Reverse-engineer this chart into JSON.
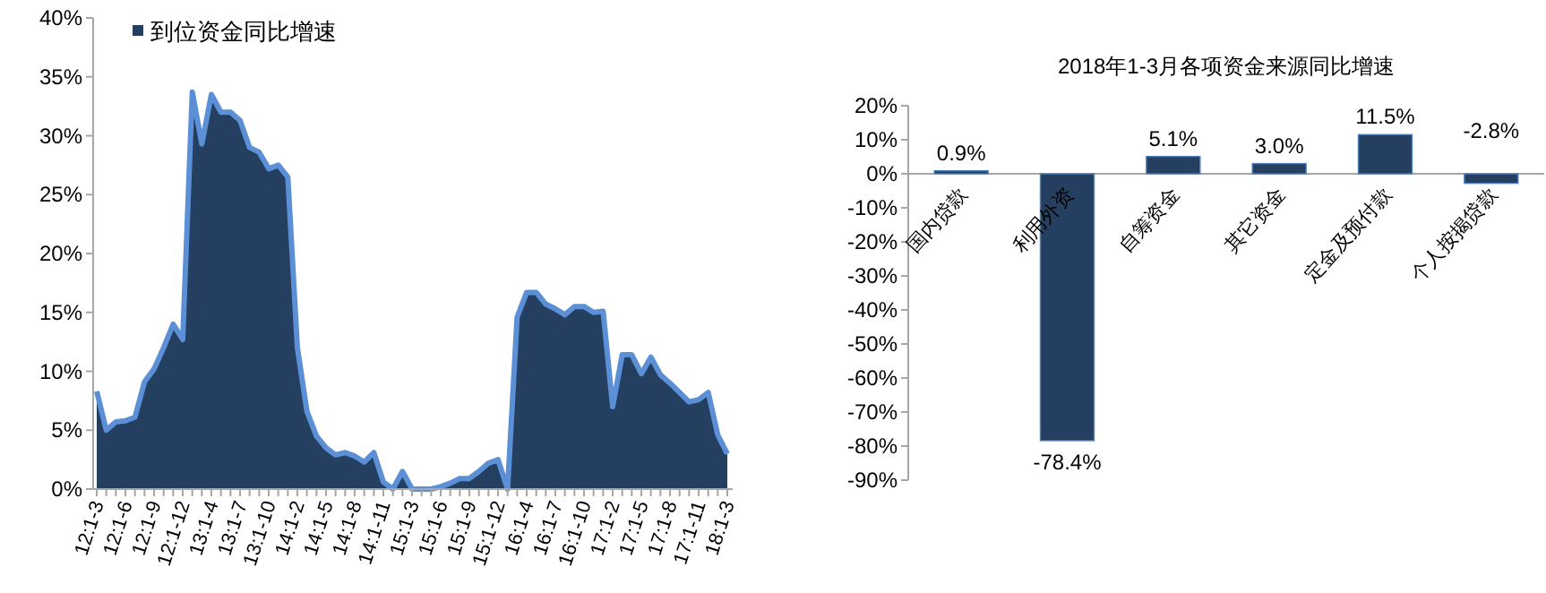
{
  "chart_data": [
    {
      "type": "area",
      "categories": [
        "12:1-3",
        null,
        null,
        "12:1-6",
        null,
        null,
        "12:1-9",
        null,
        null,
        "12:1-12",
        null,
        null,
        "13:1-4",
        null,
        null,
        "13:1-7",
        null,
        null,
        "13:1-10",
        null,
        null,
        "14:1-2",
        null,
        null,
        "14:1-5",
        null,
        null,
        "14:1-8",
        null,
        null,
        "14:1-11",
        null,
        null,
        "15:1-3",
        null,
        null,
        "15:1-6",
        null,
        null,
        "15:1-9",
        null,
        null,
        "15:1-12",
        null,
        null,
        "16:1-4",
        null,
        null,
        "16:1-7",
        null,
        null,
        "16:1-10",
        null,
        null,
        "17:1-2",
        null,
        null,
        "17:1-5",
        null,
        null,
        "17:1-8",
        null,
        null,
        "17:1-11",
        null,
        null,
        "18:1-3"
      ],
      "series": [
        {
          "name": "到位资金同比增速",
          "color": "#243f60",
          "values": [
            8.3,
            5.0,
            5.7,
            5.8,
            6.1,
            9.1,
            10.2,
            12.0,
            14.0,
            12.7,
            33.7,
            29.3,
            33.5,
            32.0,
            32.0,
            31.3,
            29.0,
            28.6,
            27.2,
            27.5,
            26.5,
            12.0,
            6.6,
            4.5,
            3.5,
            2.9,
            3.1,
            2.8,
            2.3,
            3.1,
            0.6,
            0,
            1.5,
            0,
            0,
            0,
            0.2,
            0.5,
            0.9,
            0.9,
            1.5,
            2.2,
            2.5,
            0,
            14.6,
            16.7,
            16.7,
            15.7,
            15.3,
            14.8,
            15.5,
            15.5,
            15.0,
            15.1,
            7.0,
            11.4,
            11.4,
            9.8,
            11.2,
            9.7,
            9.0,
            8.2,
            7.4,
            7.6,
            8.2,
            4.6,
            3.0
          ]
        }
      ],
      "ylim": [
        0,
        40
      ],
      "yticks": [
        {
          "value": 0,
          "label": "0%"
        },
        {
          "value": 5,
          "label": "5%"
        },
        {
          "value": 10,
          "label": "10%"
        },
        {
          "value": 15,
          "label": "15%"
        },
        {
          "value": 20,
          "label": "20%"
        },
        {
          "value": 25,
          "label": "25%"
        },
        {
          "value": 30,
          "label": "30%"
        },
        {
          "value": 35,
          "label": "35%"
        },
        {
          "value": 40,
          "label": "40%"
        }
      ],
      "legend": "top left",
      "grid": false
    },
    {
      "type": "bar",
      "title": "2018年1-3月各项资金来源同比增速",
      "categories": [
        "国内贷款",
        "利用外资",
        "自筹资金",
        "其它资金",
        "定金及预付款",
        "个人按揭贷款"
      ],
      "values": [
        0.9,
        -78.4,
        5.1,
        3.0,
        11.5,
        -2.8
      ],
      "color": "#243f60",
      "value_labels": [
        "0.9%",
        "-78.4%",
        "5.1%",
        "3.0%",
        "11.5%",
        "-2.8%"
      ],
      "ylim": [
        -90,
        20
      ],
      "yticks": [
        {
          "value": 20,
          "label": "20%"
        },
        {
          "value": 10,
          "label": "10%"
        },
        {
          "value": 0,
          "label": "0%"
        },
        {
          "value": -10,
          "label": "-10%"
        },
        {
          "value": -20,
          "label": "-20%"
        },
        {
          "value": -30,
          "label": "-30%"
        },
        {
          "value": -40,
          "label": "-40%"
        },
        {
          "value": -50,
          "label": "-50%"
        },
        {
          "value": -60,
          "label": "-60%"
        },
        {
          "value": -70,
          "label": "-70%"
        },
        {
          "value": -80,
          "label": "-80%"
        },
        {
          "value": -90,
          "label": "-90%"
        }
      ],
      "grid": false
    }
  ]
}
